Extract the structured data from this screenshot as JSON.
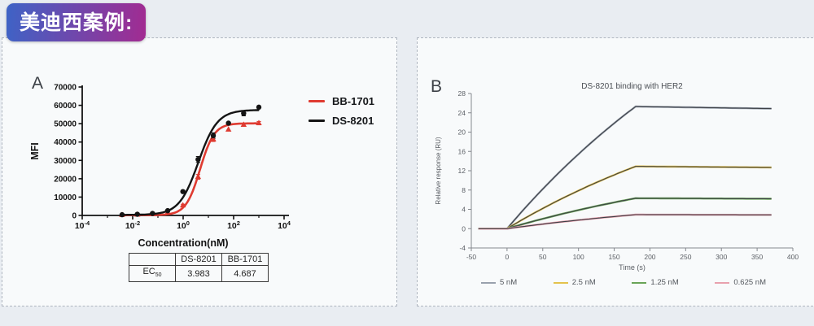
{
  "header": {
    "badge_text": "美迪西案例:"
  },
  "colors": {
    "badge_gradient_from": "#3e63c6",
    "badge_gradient_to": "#a22b91",
    "page_bg": "#e9edf2",
    "panel_bg": "#f8fafb",
    "panel_border": "#aeb5bf",
    "prism_red": "#df3b31",
    "prism_black": "#141414",
    "spr_fit_line": "#3d4046"
  },
  "panel_a": {
    "letter": "A",
    "legend": [
      {
        "label": "BB-1701",
        "color": "#df3b31"
      },
      {
        "label": "DS-8201",
        "color": "#141414"
      }
    ],
    "table": {
      "headers": [
        "",
        "DS-8201",
        "BB-1701"
      ],
      "row_label": "EC",
      "row_label_sub": "50",
      "values": [
        "3.983",
        "4.687"
      ]
    }
  },
  "panel_b": {
    "letter": "B",
    "legend": [
      {
        "label": "5 nM",
        "color": "#99a1ad"
      },
      {
        "label": "2.5 nM",
        "color": "#e4c24c"
      },
      {
        "label": "1.25 nM",
        "color": "#69a457"
      },
      {
        "label": "0.625 nM",
        "color": "#e8a1ae"
      }
    ]
  },
  "chart_data": [
    {
      "type": "scatter",
      "panel": "A",
      "xlabel": "Concentration(nM)",
      "ylabel": "MFI",
      "x_scale": "log10",
      "xlim": [
        0.0001,
        10000
      ],
      "x_tick_exponents": [
        -4,
        -2,
        0,
        2,
        4
      ],
      "ylim": [
        0,
        70000
      ],
      "y_ticks": [
        0,
        10000,
        20000,
        30000,
        40000,
        50000,
        60000,
        70000
      ],
      "concentrations_nM": [
        0.0038,
        0.0153,
        0.061,
        0.244,
        0.977,
        3.906,
        15.63,
        62.5,
        250,
        1000
      ],
      "series": [
        {
          "name": "BB-1701",
          "color": "#df3b31",
          "marker": "triangle",
          "fit": {
            "ec50": 4.687,
            "top": 50200,
            "bottom": 150,
            "hill": 1.55
          },
          "values": [
            250,
            450,
            800,
            1600,
            5500,
            21000,
            41500,
            46800,
            49400,
            50300
          ],
          "errors": [
            0,
            0,
            0,
            0,
            600,
            1300,
            1200,
            0,
            0,
            900
          ]
        },
        {
          "name": "DS-8201",
          "color": "#141414",
          "marker": "circle",
          "fit": {
            "ec50": 3.983,
            "top": 57500,
            "bottom": 300,
            "hill": 1.15
          },
          "values": [
            400,
            650,
            1100,
            2600,
            13000,
            30500,
            43500,
            50300,
            55600,
            59000
          ],
          "errors": [
            0,
            0,
            0,
            0,
            700,
            1600,
            1500,
            0,
            1300,
            0
          ]
        }
      ],
      "ec50_nM": {
        "DS-8201": 3.983,
        "BB-1701": 4.687
      }
    },
    {
      "type": "line",
      "panel": "B",
      "title": "DS-8201 binding with HER2",
      "xlabel": "Time (s)",
      "ylabel": "Relative response (RU)",
      "xlim": [
        -50,
        400
      ],
      "x_ticks": [
        -50,
        0,
        50,
        100,
        150,
        200,
        250,
        300,
        350,
        400
      ],
      "ylim": [
        -4,
        28
      ],
      "y_ticks": [
        -4,
        0,
        4,
        8,
        12,
        16,
        20,
        24,
        28
      ],
      "phases": {
        "baseline_start": -40,
        "association_start": 0,
        "association_end": 180,
        "curve_end": 370
      },
      "fit_line_color": "#3d4046",
      "series": [
        {
          "name": "5 nM",
          "color": "#99a1ad",
          "plateau_RU": 25.3
        },
        {
          "name": "2.5 nM",
          "color": "#e4c24c",
          "plateau_RU": 12.9
        },
        {
          "name": "1.25 nM",
          "color": "#69a457",
          "plateau_RU": 6.3
        },
        {
          "name": "0.625 nM",
          "color": "#e8a1ae",
          "plateau_RU": 2.9
        }
      ]
    }
  ]
}
